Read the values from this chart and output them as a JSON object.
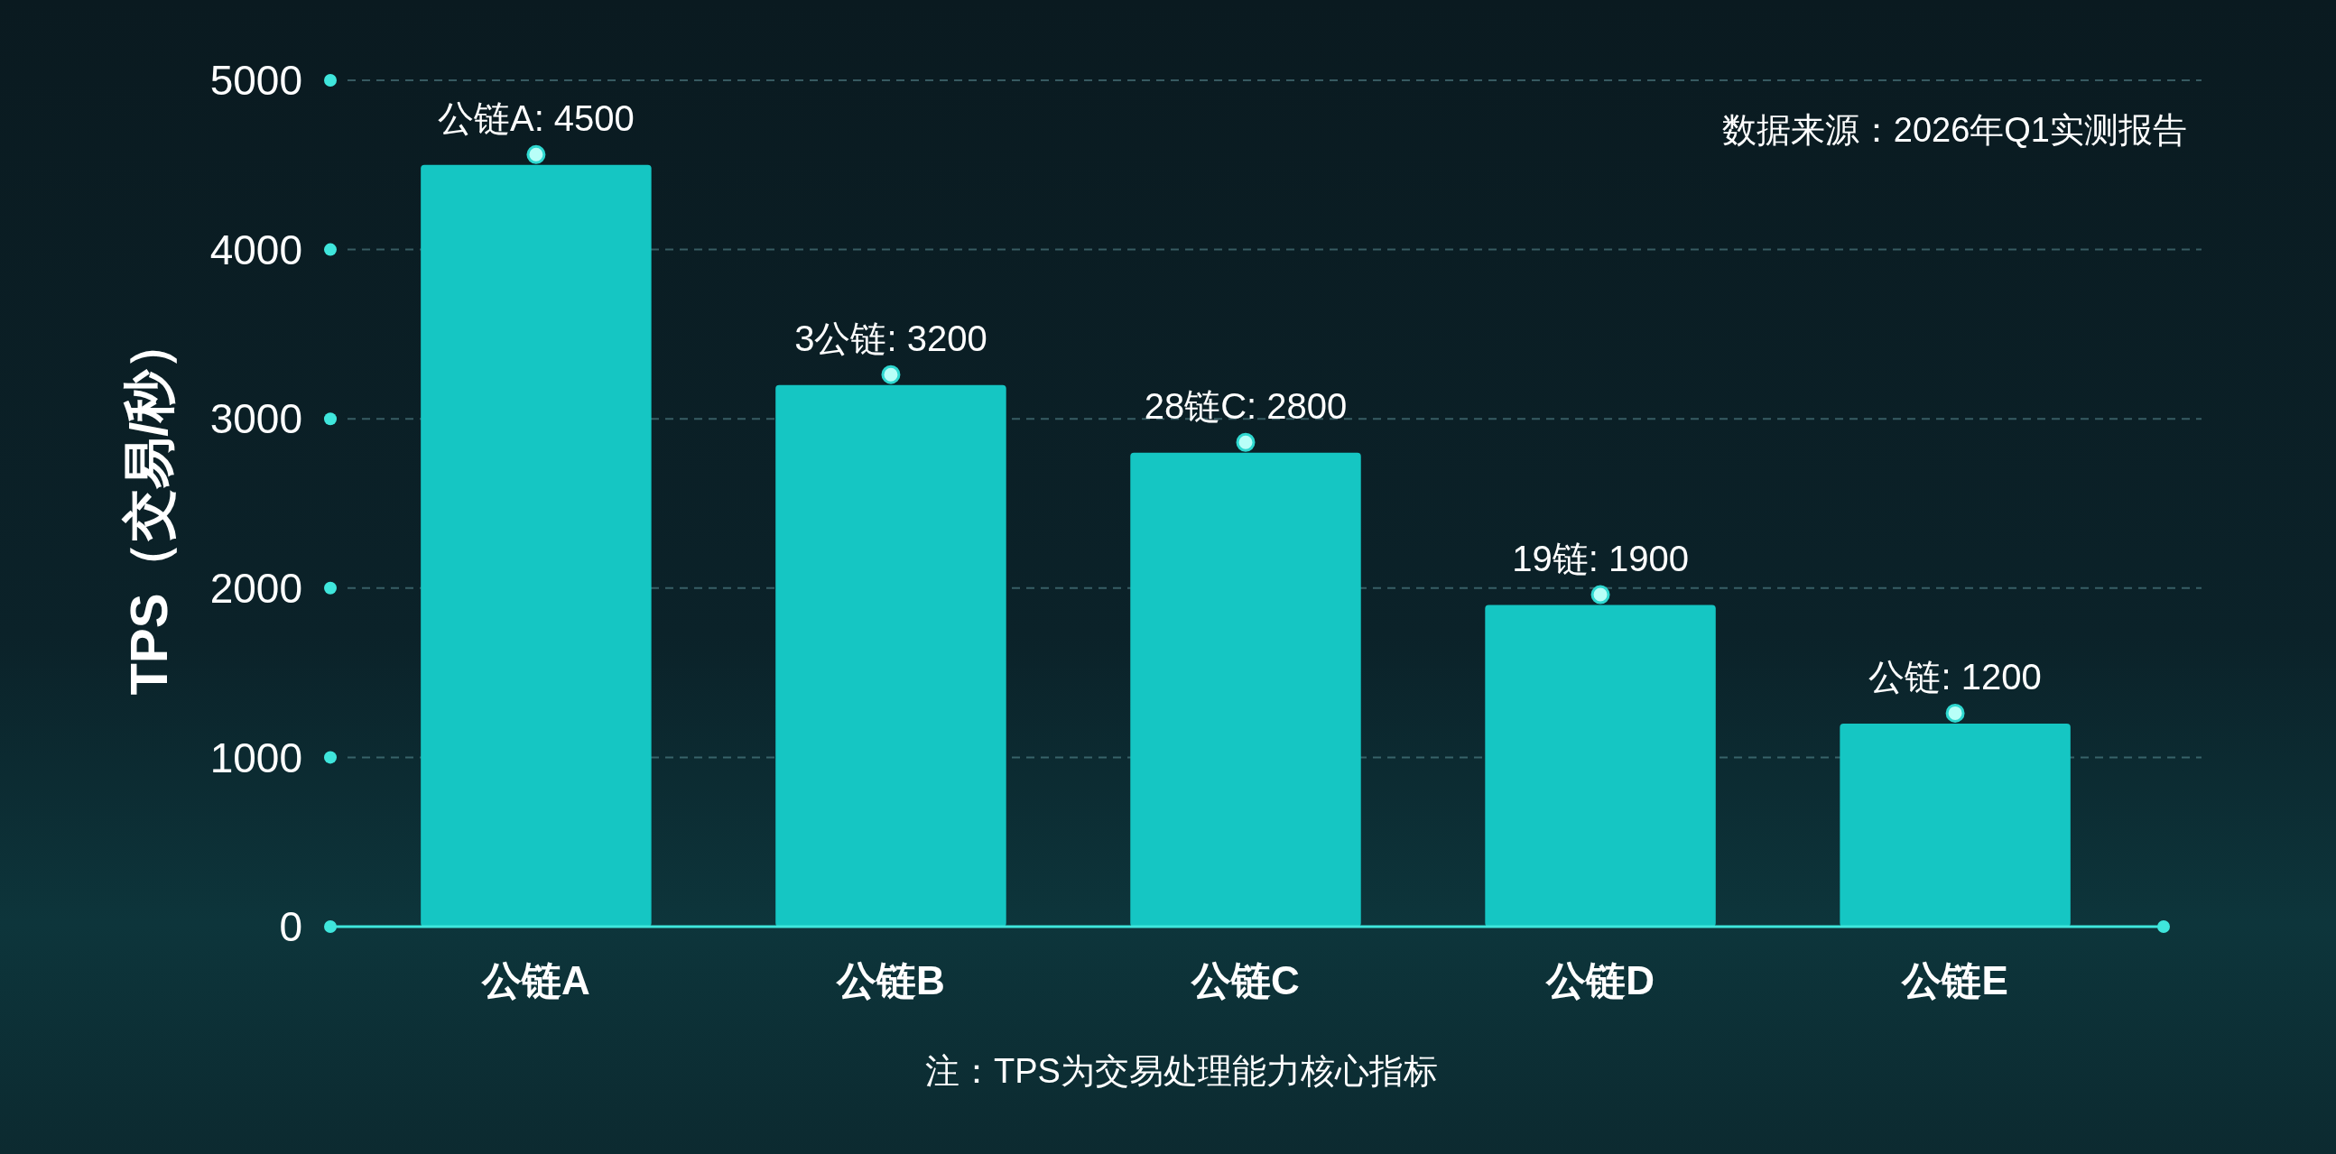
{
  "chart_data": {
    "type": "bar",
    "categories": [
      "公链A",
      "公链B",
      "公链C",
      "公链D",
      "公链E"
    ],
    "values": [
      4500,
      3200,
      2800,
      1900,
      1200
    ],
    "value_labels": [
      "公链A: 4500",
      "3公链: 3200",
      "28链C: 2800",
      "19链: 1900",
      "公链: 1200"
    ],
    "color": "#15c6c3",
    "ylabel": "TPS（交易/秒）",
    "ylim": [
      0,
      5000
    ],
    "yticks": [
      0,
      1000,
      2000,
      3000,
      4000,
      5000
    ],
    "grid": "y",
    "marker": "circle",
    "annotations": [
      "数据来源：2026年Q1实测报告",
      "注：TPS为交易处理能力核心指标"
    ]
  }
}
